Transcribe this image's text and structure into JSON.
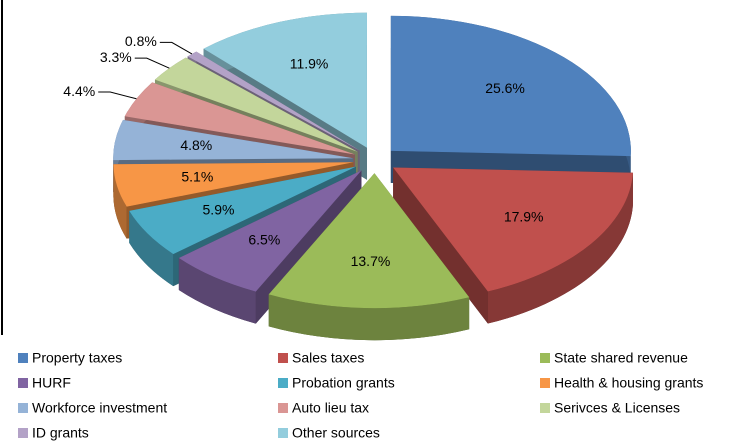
{
  "chart_data": {
    "type": "pie",
    "categories": [
      "Property taxes",
      "Sales taxes",
      "State shared revenue",
      "HURF",
      "Probation grants",
      "Health & housing grants",
      "Workforce investment",
      "Auto lieu tax",
      "Serivces & Licenses",
      "ID grants",
      "Other sources"
    ],
    "values": [
      25.6,
      17.9,
      13.7,
      6.5,
      5.9,
      5.1,
      4.8,
      4.4,
      3.3,
      0.8,
      11.9
    ],
    "value_labels": [
      "25.6%",
      "17.9%",
      "13.7%",
      "6.5%",
      "5.9%",
      "5.1%",
      "4.8%",
      "4.4%",
      "3.3%",
      "0.8%",
      "11.9%"
    ],
    "colors": [
      "#4f81bd",
      "#c0504d",
      "#9bbb59",
      "#8064a2",
      "#4bacc6",
      "#f79646",
      "#95b3d7",
      "#da9694",
      "#c3d69b",
      "#b3a2c7",
      "#93cddd"
    ],
    "legend": "bottom"
  }
}
